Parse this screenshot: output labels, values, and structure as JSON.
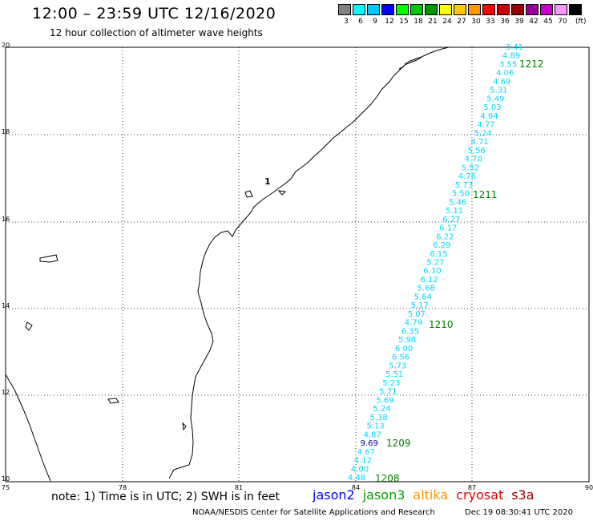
{
  "title": "12:00 – 23:59 UTC 12/16/2020",
  "subtitle": "12 hour collection of altimeter wave heights",
  "color_scale": {
    "unit": "(ft)",
    "items": [
      {
        "label": "3",
        "color": "#808080"
      },
      {
        "label": "6",
        "color": "#00ffff"
      },
      {
        "label": "9",
        "color": "#00c8ff"
      },
      {
        "label": "12",
        "color": "#0000ff"
      },
      {
        "label": "15",
        "color": "#00ff00"
      },
      {
        "label": "18",
        "color": "#00c800"
      },
      {
        "label": "21",
        "color": "#009600"
      },
      {
        "label": "24",
        "color": "#ffff00"
      },
      {
        "label": "27",
        "color": "#ffc800"
      },
      {
        "label": "30",
        "color": "#ff9600"
      },
      {
        "label": "33",
        "color": "#ff0000"
      },
      {
        "label": "36",
        "color": "#c80000"
      },
      {
        "label": "39",
        "color": "#960000"
      },
      {
        "label": "42",
        "color": "#960096"
      },
      {
        "label": "45",
        "color": "#c800c8"
      },
      {
        "label": "70",
        "color": "#ff96ff"
      },
      {
        "label": "",
        "color": "#000000"
      }
    ]
  },
  "axes": {
    "x_ticks": [
      "75",
      "78",
      "81",
      "84",
      "87",
      "90"
    ],
    "y_ticks": [
      "20",
      "18",
      "16",
      "14",
      "12",
      "10"
    ]
  },
  "swh_values": [
    "3.41",
    "4.89",
    "3.55",
    "4.06",
    "4.69",
    "5.31",
    "5.49",
    "5.03",
    "4.94",
    "4.77",
    "5.24",
    "4.71",
    "5.56",
    "4.70",
    "5.52",
    "4.76",
    "5.73",
    "5.50",
    "5.46",
    "5.11",
    "6.27",
    "6.17",
    "6.22",
    "6.29",
    "6.15",
    "5.27",
    "6.10",
    "6.12",
    "5.68",
    "5.64",
    "5.17",
    "5.07",
    "4.79",
    "6.35",
    "5.98",
    "6.00",
    "6.56",
    "5.73",
    "5.51",
    "5.23",
    "5.71",
    "5.69",
    "5.24",
    "5.38",
    "5.13",
    "4.87",
    "9.69",
    "4.67",
    "4.12",
    "4.00",
    "4.48"
  ],
  "highlight_value": "9.69",
  "time_labels": [
    {
      "text": "1212"
    },
    {
      "text": "1211"
    },
    {
      "text": "1210"
    },
    {
      "text": "1209"
    },
    {
      "text": "1208"
    }
  ],
  "map_marker": "1",
  "note": "note: 1) Time is in UTC; 2) SWH is in feet",
  "legend": [
    {
      "text": "jason2",
      "color": "#0000ff"
    },
    {
      "text": "jason3",
      "color": "#00a000"
    },
    {
      "text": "altika",
      "color": "#ff9600"
    },
    {
      "text": "cryosat",
      "color": "#e00000"
    },
    {
      "text": "s3a",
      "color": "#a00000"
    }
  ],
  "credit": "NOAA/NESDIS Center for Satellite Applications and Research",
  "timestamp": "Dec 19 08:30:41 UTC 2020",
  "track_color": "#00d8ff",
  "time_color": "#008000",
  "highlight_color": "#0000aa"
}
